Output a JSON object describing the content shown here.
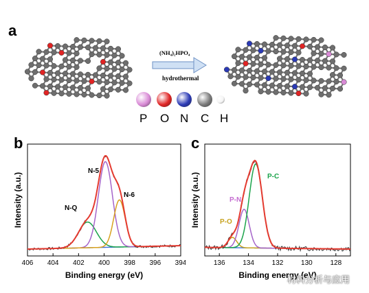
{
  "panels": {
    "a": {
      "letter": "a",
      "reagent": "(NH₄)₂HPO₄",
      "condition": "hydrothermal",
      "legend": [
        {
          "label": "P",
          "color": "#d98ad6"
        },
        {
          "label": "O",
          "color": "#e02424"
        },
        {
          "label": "N",
          "color": "#2b3ab5"
        },
        {
          "label": "C",
          "color": "#7a7a7a"
        },
        {
          "label": "H",
          "color": "#f4f4f4"
        }
      ]
    },
    "b": {
      "letter": "b"
    },
    "c": {
      "letter": "c"
    }
  },
  "chart_data": [
    {
      "type": "line",
      "panel": "b",
      "title": "",
      "xlabel": "Binding energy (eV)",
      "ylabel": "Intensity (a.u.)",
      "xlim": [
        406,
        394
      ],
      "xticks": [
        "406",
        "404",
        "402",
        "400",
        "398",
        "396",
        "394"
      ],
      "x_reversed": true,
      "peaks": [
        {
          "name": "N-Q",
          "center": 401.3,
          "height": 0.3,
          "color": "#1aa34a"
        },
        {
          "name": "N-5",
          "center": 399.9,
          "height": 1.0,
          "color": "#a564c9"
        },
        {
          "name": "N-6",
          "center": 398.8,
          "height": 0.55,
          "color": "#d8a01d"
        }
      ],
      "annotations": [
        "N-Q",
        "N-5",
        "N-6"
      ],
      "series": [
        {
          "role": "raw",
          "color": "#333333"
        },
        {
          "role": "fit",
          "color": "#e53a30"
        },
        {
          "role": "background",
          "color": "#3a6fd8"
        }
      ]
    },
    {
      "type": "line",
      "panel": "c",
      "title": "",
      "xlabel": "Binding energy (eV)",
      "ylabel": "Intensity (a.u.)",
      "xlim": [
        137,
        127
      ],
      "xticks": [
        "136",
        "134",
        "132",
        "130",
        "128"
      ],
      "x_reversed": true,
      "peaks": [
        {
          "name": "P-O",
          "center": 135.1,
          "height": 0.12,
          "color": "#c7a21d"
        },
        {
          "name": "P-N",
          "center": 134.3,
          "height": 0.45,
          "color": "#a564c9"
        },
        {
          "name": "P-C",
          "center": 133.5,
          "height": 0.98,
          "color": "#1aa34a"
        }
      ],
      "annotations": [
        "P-O",
        "P-N",
        "P-C"
      ],
      "series": [
        {
          "role": "raw",
          "color": "#333333"
        },
        {
          "role": "fit",
          "color": "#e53a30"
        },
        {
          "role": "background",
          "color": "#3a6fd8"
        }
      ]
    }
  ],
  "watermark": "材料分析与应用"
}
